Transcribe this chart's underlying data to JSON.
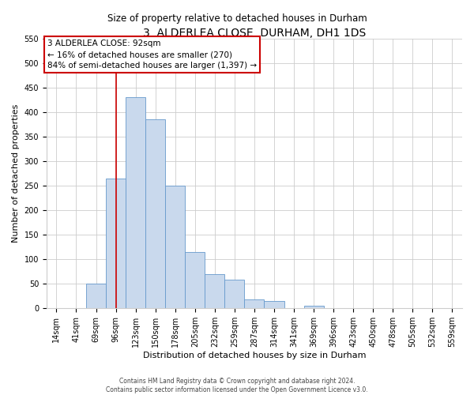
{
  "title": "3, ALDERLEA CLOSE, DURHAM, DH1 1DS",
  "subtitle": "Size of property relative to detached houses in Durham",
  "xlabel": "Distribution of detached houses by size in Durham",
  "ylabel": "Number of detached properties",
  "bar_labels": [
    "14sqm",
    "41sqm",
    "69sqm",
    "96sqm",
    "123sqm",
    "150sqm",
    "178sqm",
    "205sqm",
    "232sqm",
    "259sqm",
    "287sqm",
    "314sqm",
    "341sqm",
    "369sqm",
    "396sqm",
    "423sqm",
    "450sqm",
    "478sqm",
    "505sqm",
    "532sqm",
    "559sqm"
  ],
  "bar_values": [
    0,
    0,
    50,
    265,
    430,
    385,
    250,
    115,
    70,
    58,
    18,
    15,
    0,
    6,
    0,
    0,
    1,
    0,
    0,
    0,
    0
  ],
  "bar_color": "#c9d9ed",
  "bar_edge_color": "#6699cc",
  "vline_x_index": 3,
  "vline_color": "#cc0000",
  "annotation_title": "3 ALDERLEA CLOSE: 92sqm",
  "annotation_line2": "← 16% of detached houses are smaller (270)",
  "annotation_line3": "84% of semi-detached houses are larger (1,397) →",
  "annotation_box_edge_color": "#cc0000",
  "ylim": [
    0,
    550
  ],
  "yticks": [
    0,
    50,
    100,
    150,
    200,
    250,
    300,
    350,
    400,
    450,
    500,
    550
  ],
  "footer_line1": "Contains HM Land Registry data © Crown copyright and database right 2024.",
  "footer_line2": "Contains public sector information licensed under the Open Government Licence v3.0.",
  "bg_color": "#ffffff",
  "grid_color": "#cccccc",
  "title_fontsize": 10,
  "subtitle_fontsize": 8.5,
  "tick_fontsize": 7,
  "label_fontsize": 8,
  "annotation_fontsize": 7.5
}
